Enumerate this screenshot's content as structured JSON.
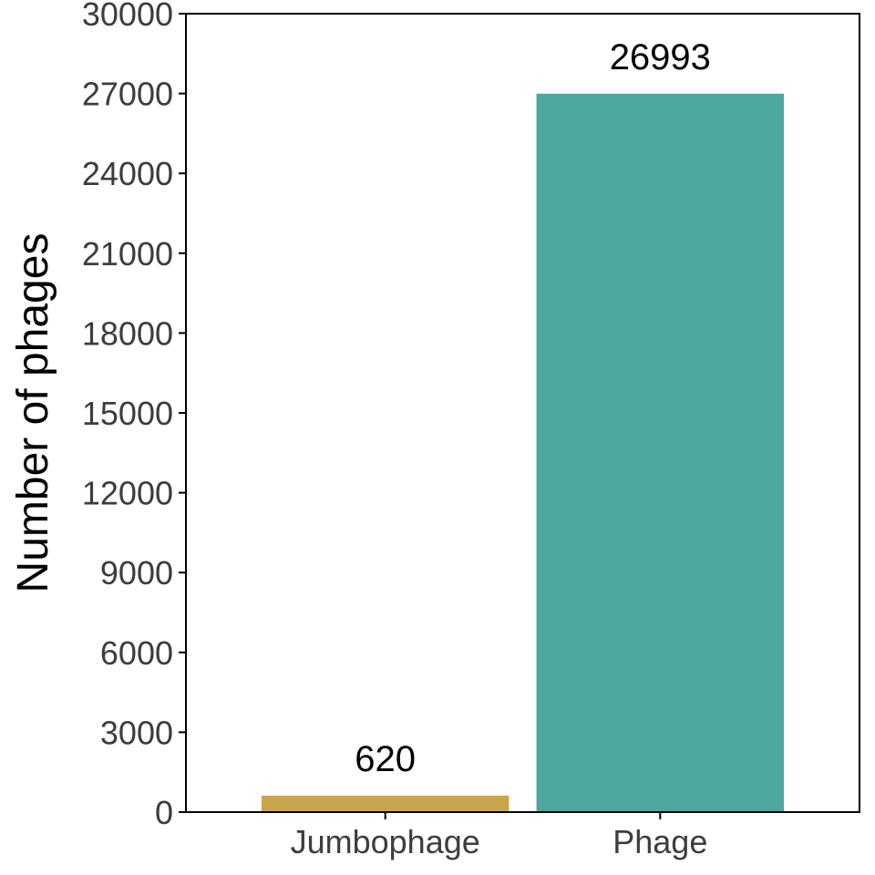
{
  "chart_data": {
    "type": "bar",
    "title": "",
    "xlabel": "",
    "ylabel": "Number of phages",
    "categories": [
      "Jumbophage",
      "Phage"
    ],
    "values": [
      620,
      26993
    ],
    "data_labels": [
      "620",
      "26993"
    ],
    "bar_colors": [
      "#c9a44e",
      "#4ea79c"
    ],
    "ylim": [
      0,
      30000
    ],
    "y_ticks": [
      0,
      3000,
      6000,
      9000,
      12000,
      15000,
      18000,
      21000,
      24000,
      27000,
      30000
    ],
    "y_tick_labels": [
      "0",
      "3000",
      "6000",
      "9000",
      "12000",
      "15000",
      "18000",
      "21000",
      "24000",
      "27000",
      "30000"
    ],
    "grid": false,
    "legend": "none",
    "frame_color": "#000000",
    "tick_label_color": "#3d3d3d"
  }
}
